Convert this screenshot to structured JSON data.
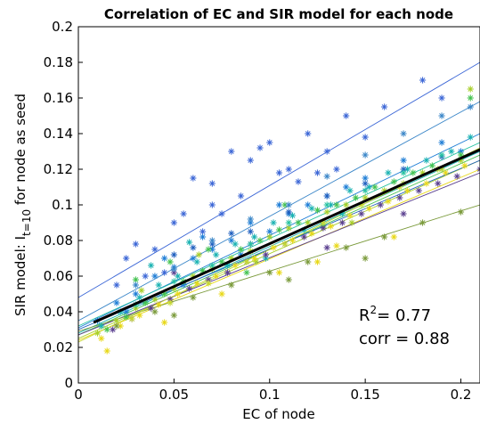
{
  "chart_data": {
    "type": "scatter",
    "title": "Correlation of EC and SIR model for each node",
    "xlabel": "EC of node",
    "ylabel": {
      "main": "SIR model: I",
      "sub": "t=10",
      "rest": " for node as seed"
    },
    "xlim": [
      0,
      0.21
    ],
    "ylim": [
      0,
      0.2
    ],
    "xticks": [
      0,
      0.05,
      0.1,
      0.15,
      0.2
    ],
    "xtick_labels": [
      "0",
      "0.05",
      "0.1",
      "0.15",
      "0.2"
    ],
    "yticks": [
      0,
      0.02,
      0.04,
      0.06,
      0.08,
      0.1,
      0.12,
      0.14,
      0.16,
      0.18,
      0.2
    ],
    "ytick_labels": [
      "0",
      "0.02",
      "0.04",
      "0.06",
      "0.08",
      "0.1",
      "0.12",
      "0.14",
      "0.16",
      "0.18",
      "0.2"
    ],
    "grid": false,
    "marker": "asterisk",
    "annotations": {
      "r2_label": "R",
      "r2_sup": "2",
      "r2_value": "= 0.77",
      "corr_text": "corr = 0.88"
    },
    "overall_fit": {
      "x": [
        0.008,
        0.21
      ],
      "y": [
        0.034,
        0.131
      ],
      "color": "#000000"
    },
    "series": [
      {
        "color": "#3b66d6",
        "fit": {
          "x": [
            0,
            0.21
          ],
          "y": [
            0.048,
            0.18
          ]
        },
        "points": [
          [
            0.03,
            0.078
          ],
          [
            0.04,
            0.075
          ],
          [
            0.05,
            0.09
          ],
          [
            0.06,
            0.115
          ],
          [
            0.07,
            0.1
          ],
          [
            0.08,
            0.13
          ],
          [
            0.09,
            0.125
          ],
          [
            0.1,
            0.135
          ],
          [
            0.11,
            0.12
          ],
          [
            0.12,
            0.14
          ],
          [
            0.13,
            0.13
          ],
          [
            0.14,
            0.15
          ],
          [
            0.15,
            0.138
          ],
          [
            0.16,
            0.155
          ],
          [
            0.18,
            0.17
          ],
          [
            0.19,
            0.16
          ],
          [
            0.07,
            0.112
          ],
          [
            0.095,
            0.132
          ],
          [
            0.055,
            0.095
          ],
          [
            0.045,
            0.062
          ],
          [
            0.035,
            0.06
          ],
          [
            0.025,
            0.07
          ],
          [
            0.085,
            0.105
          ],
          [
            0.125,
            0.118
          ],
          [
            0.105,
            0.118
          ],
          [
            0.02,
            0.055
          ],
          [
            0.075,
            0.095
          ],
          [
            0.065,
            0.085
          ],
          [
            0.115,
            0.113
          ],
          [
            0.135,
            0.12
          ]
        ]
      },
      {
        "color": "#1f7ed6",
        "fit": {
          "x": [
            0,
            0.21
          ],
          "y": [
            0.031,
            0.14
          ]
        },
        "points": [
          [
            0.01,
            0.035
          ],
          [
            0.02,
            0.045
          ],
          [
            0.03,
            0.05
          ],
          [
            0.04,
            0.06
          ],
          [
            0.05,
            0.065
          ],
          [
            0.06,
            0.07
          ],
          [
            0.07,
            0.075
          ],
          [
            0.08,
            0.08
          ],
          [
            0.09,
            0.09
          ],
          [
            0.1,
            0.085
          ],
          [
            0.11,
            0.095
          ],
          [
            0.12,
            0.1
          ],
          [
            0.13,
            0.105
          ],
          [
            0.14,
            0.11
          ],
          [
            0.15,
            0.115
          ],
          [
            0.17,
            0.125
          ],
          [
            0.19,
            0.135
          ],
          [
            0.2,
            0.13
          ],
          [
            0.045,
            0.07
          ],
          [
            0.065,
            0.082
          ],
          [
            0.085,
            0.072
          ],
          [
            0.105,
            0.1
          ],
          [
            0.025,
            0.04
          ],
          [
            0.055,
            0.055
          ]
        ]
      },
      {
        "color": "#19b2b2",
        "fit": {
          "x": [
            0,
            0.21
          ],
          "y": [
            0.028,
            0.13
          ]
        },
        "points": [
          [
            0.012,
            0.032
          ],
          [
            0.022,
            0.04
          ],
          [
            0.032,
            0.048
          ],
          [
            0.042,
            0.055
          ],
          [
            0.052,
            0.06
          ],
          [
            0.062,
            0.068
          ],
          [
            0.072,
            0.072
          ],
          [
            0.082,
            0.078
          ],
          [
            0.092,
            0.082
          ],
          [
            0.102,
            0.09
          ],
          [
            0.112,
            0.094
          ],
          [
            0.122,
            0.098
          ],
          [
            0.132,
            0.1
          ],
          [
            0.142,
            0.108
          ],
          [
            0.152,
            0.11
          ],
          [
            0.162,
            0.118
          ],
          [
            0.172,
            0.12
          ],
          [
            0.182,
            0.125
          ],
          [
            0.195,
            0.13
          ],
          [
            0.205,
            0.138
          ],
          [
            0.038,
            0.066
          ],
          [
            0.058,
            0.079
          ],
          [
            0.078,
            0.066
          ],
          [
            0.098,
            0.07
          ],
          [
            0.118,
            0.086
          ],
          [
            0.138,
            0.095
          ]
        ]
      },
      {
        "color": "#43c24f",
        "fit": {
          "x": [
            0,
            0.21
          ],
          "y": [
            0.027,
            0.128
          ]
        },
        "points": [
          [
            0.015,
            0.03
          ],
          [
            0.025,
            0.037
          ],
          [
            0.035,
            0.045
          ],
          [
            0.045,
            0.05
          ],
          [
            0.055,
            0.057
          ],
          [
            0.065,
            0.063
          ],
          [
            0.075,
            0.068
          ],
          [
            0.085,
            0.075
          ],
          [
            0.095,
            0.08
          ],
          [
            0.105,
            0.086
          ],
          [
            0.115,
            0.09
          ],
          [
            0.125,
            0.097
          ],
          [
            0.135,
            0.1
          ],
          [
            0.145,
            0.104
          ],
          [
            0.155,
            0.11
          ],
          [
            0.165,
            0.113
          ],
          [
            0.175,
            0.118
          ],
          [
            0.185,
            0.122
          ],
          [
            0.2,
            0.128
          ],
          [
            0.205,
            0.16
          ],
          [
            0.048,
            0.068
          ],
          [
            0.068,
            0.075
          ],
          [
            0.088,
            0.062
          ],
          [
            0.108,
            0.1
          ],
          [
            0.128,
            0.088
          ],
          [
            0.03,
            0.058
          ]
        ]
      },
      {
        "color": "#a8cf2a",
        "fit": {
          "x": [
            0,
            0.21
          ],
          "y": [
            0.025,
            0.125
          ]
        },
        "points": [
          [
            0.01,
            0.028
          ],
          [
            0.02,
            0.035
          ],
          [
            0.03,
            0.042
          ],
          [
            0.04,
            0.047
          ],
          [
            0.05,
            0.053
          ],
          [
            0.06,
            0.06
          ],
          [
            0.07,
            0.064
          ],
          [
            0.08,
            0.07
          ],
          [
            0.09,
            0.074
          ],
          [
            0.1,
            0.082
          ],
          [
            0.11,
            0.087
          ],
          [
            0.12,
            0.09
          ],
          [
            0.13,
            0.096
          ],
          [
            0.14,
            0.1
          ],
          [
            0.15,
            0.104
          ],
          [
            0.16,
            0.108
          ],
          [
            0.17,
            0.112
          ],
          [
            0.18,
            0.118
          ],
          [
            0.19,
            0.12
          ],
          [
            0.2,
            0.125
          ],
          [
            0.205,
            0.165
          ],
          [
            0.033,
            0.052
          ],
          [
            0.063,
            0.072
          ],
          [
            0.093,
            0.068
          ],
          [
            0.143,
            0.09
          ]
        ]
      },
      {
        "color": "#e8d817",
        "fit": {
          "x": [
            0,
            0.21
          ],
          "y": [
            0.024,
            0.12
          ]
        },
        "points": [
          [
            0.012,
            0.025
          ],
          [
            0.022,
            0.032
          ],
          [
            0.032,
            0.038
          ],
          [
            0.042,
            0.044
          ],
          [
            0.052,
            0.05
          ],
          [
            0.062,
            0.056
          ],
          [
            0.072,
            0.06
          ],
          [
            0.082,
            0.066
          ],
          [
            0.092,
            0.07
          ],
          [
            0.102,
            0.076
          ],
          [
            0.112,
            0.08
          ],
          [
            0.122,
            0.084
          ],
          [
            0.132,
            0.088
          ],
          [
            0.142,
            0.094
          ],
          [
            0.152,
            0.098
          ],
          [
            0.162,
            0.102
          ],
          [
            0.172,
            0.108
          ],
          [
            0.182,
            0.112
          ],
          [
            0.192,
            0.118
          ],
          [
            0.202,
            0.122
          ],
          [
            0.015,
            0.018
          ],
          [
            0.045,
            0.034
          ],
          [
            0.075,
            0.05
          ],
          [
            0.105,
            0.062
          ],
          [
            0.135,
            0.077
          ],
          [
            0.165,
            0.082
          ],
          [
            0.125,
            0.068
          ]
        ]
      },
      {
        "color": "#5a3f8f",
        "fit": {
          "x": [
            0,
            0.21
          ],
          "y": [
            0.027,
            0.118
          ]
        },
        "points": [
          [
            0.018,
            0.03
          ],
          [
            0.028,
            0.036
          ],
          [
            0.038,
            0.042
          ],
          [
            0.048,
            0.047
          ],
          [
            0.058,
            0.053
          ],
          [
            0.068,
            0.058
          ],
          [
            0.078,
            0.062
          ],
          [
            0.088,
            0.068
          ],
          [
            0.098,
            0.072
          ],
          [
            0.108,
            0.078
          ],
          [
            0.118,
            0.082
          ],
          [
            0.128,
            0.087
          ],
          [
            0.138,
            0.09
          ],
          [
            0.148,
            0.095
          ],
          [
            0.158,
            0.1
          ],
          [
            0.168,
            0.104
          ],
          [
            0.178,
            0.108
          ],
          [
            0.188,
            0.112
          ],
          [
            0.198,
            0.116
          ],
          [
            0.05,
            0.062
          ],
          [
            0.09,
            0.078
          ],
          [
            0.13,
            0.076
          ],
          [
            0.17,
            0.095
          ],
          [
            0.21,
            0.12
          ]
        ]
      },
      {
        "color": "#7a9a3a",
        "fit": {
          "x": [
            0,
            0.21
          ],
          "y": [
            0.029,
            0.1
          ]
        },
        "points": [
          [
            0.02,
            0.032
          ],
          [
            0.04,
            0.04
          ],
          [
            0.06,
            0.048
          ],
          [
            0.08,
            0.055
          ],
          [
            0.1,
            0.062
          ],
          [
            0.12,
            0.068
          ],
          [
            0.14,
            0.076
          ],
          [
            0.16,
            0.082
          ],
          [
            0.18,
            0.09
          ],
          [
            0.2,
            0.096
          ],
          [
            0.05,
            0.038
          ],
          [
            0.11,
            0.058
          ],
          [
            0.15,
            0.07
          ]
        ]
      },
      {
        "color": "#1f5fbf",
        "fit": {
          "x": [
            0,
            0.21
          ],
          "y": [
            0.03,
            0.125
          ]
        },
        "points": [
          [
            0.05,
            0.072
          ],
          [
            0.06,
            0.076
          ],
          [
            0.07,
            0.078
          ],
          [
            0.08,
            0.084
          ],
          [
            0.09,
            0.085
          ],
          [
            0.11,
            0.096
          ],
          [
            0.13,
            0.105
          ],
          [
            0.15,
            0.112
          ],
          [
            0.17,
            0.12
          ],
          [
            0.19,
            0.127
          ]
        ]
      },
      {
        "color": "#26c2a0",
        "fit": {
          "x": [
            0,
            0.21
          ],
          "y": [
            0.032,
            0.135
          ]
        },
        "points": [
          [
            0.03,
            0.044
          ],
          [
            0.05,
            0.057
          ],
          [
            0.07,
            0.066
          ],
          [
            0.09,
            0.078
          ],
          [
            0.11,
            0.09
          ],
          [
            0.13,
            0.1
          ],
          [
            0.15,
            0.108
          ],
          [
            0.17,
            0.118
          ],
          [
            0.19,
            0.128
          ]
        ]
      },
      {
        "color": "#c6d830",
        "fit": {
          "x": [
            0,
            0.21
          ],
          "y": [
            0.023,
            0.132
          ]
        },
        "points": [
          [
            0.028,
            0.036
          ],
          [
            0.048,
            0.045
          ],
          [
            0.068,
            0.056
          ],
          [
            0.088,
            0.068
          ],
          [
            0.108,
            0.078
          ],
          [
            0.128,
            0.09
          ],
          [
            0.148,
            0.1
          ],
          [
            0.168,
            0.11
          ],
          [
            0.188,
            0.12
          ]
        ]
      },
      {
        "color": "#3a86c8",
        "fit": {
          "x": [
            0,
            0.21
          ],
          "y": [
            0.035,
            0.158
          ]
        },
        "points": [
          [
            0.03,
            0.055
          ],
          [
            0.05,
            0.064
          ],
          [
            0.07,
            0.08
          ],
          [
            0.09,
            0.092
          ],
          [
            0.11,
            0.1
          ],
          [
            0.13,
            0.116
          ],
          [
            0.15,
            0.128
          ],
          [
            0.17,
            0.14
          ],
          [
            0.19,
            0.15
          ],
          [
            0.205,
            0.155
          ]
        ]
      }
    ]
  }
}
